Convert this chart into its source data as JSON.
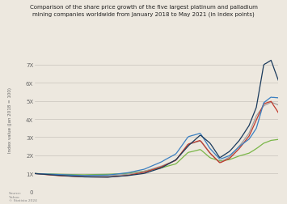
{
  "title": "Comparison of the share price growth of the five largest platinum and palladium\nmining companies worldwide from January 2018 to May 2021 (in index points)",
  "ylabel": "Index value (Jan 2018 = 100)",
  "source_text": "Source:\nYahoo\n© Statista 2024",
  "background_color": "#ede8df",
  "plot_bg_color": "#ede8df",
  "line_colors": [
    "#1a3a5c",
    "#3a7fc1",
    "#c0392b",
    "#a0a0a0",
    "#7ab648"
  ],
  "ytick_vals": [
    0,
    100,
    200,
    300,
    400,
    500,
    600,
    700
  ],
  "ytick_labels": [
    "0",
    "1X",
    "2X",
    "3X",
    "4X",
    "5X",
    "6X",
    "7X"
  ],
  "ylim": [
    0,
    800
  ],
  "profiles": {
    "navy": {
      "x": [
        0,
        0.1,
        0.2,
        0.3,
        0.38,
        0.45,
        0.52,
        0.58,
        0.63,
        0.68,
        0.72,
        0.76,
        0.8,
        0.84,
        0.88,
        0.91,
        0.94,
        0.97,
        1.0
      ],
      "y": [
        100,
        90,
        82,
        80,
        88,
        100,
        130,
        175,
        250,
        310,
        265,
        185,
        220,
        280,
        360,
        460,
        690,
        710,
        600
      ]
    },
    "blue": {
      "x": [
        0,
        0.1,
        0.2,
        0.3,
        0.38,
        0.45,
        0.52,
        0.58,
        0.63,
        0.68,
        0.72,
        0.76,
        0.8,
        0.84,
        0.88,
        0.91,
        0.94,
        0.97,
        1.0
      ],
      "y": [
        100,
        95,
        90,
        92,
        105,
        125,
        165,
        210,
        305,
        325,
        240,
        180,
        200,
        250,
        290,
        350,
        490,
        520,
        515
      ]
    },
    "red": {
      "x": [
        0,
        0.1,
        0.2,
        0.3,
        0.38,
        0.45,
        0.52,
        0.58,
        0.63,
        0.68,
        0.72,
        0.76,
        0.8,
        0.84,
        0.88,
        0.91,
        0.94,
        0.97,
        1.0
      ],
      "y": [
        100,
        88,
        83,
        82,
        90,
        108,
        138,
        175,
        265,
        285,
        215,
        160,
        185,
        240,
        310,
        400,
        490,
        505,
        440
      ]
    },
    "gray": {
      "x": [
        0,
        0.1,
        0.2,
        0.3,
        0.38,
        0.45,
        0.52,
        0.58,
        0.63,
        0.68,
        0.72,
        0.76,
        0.8,
        0.84,
        0.88,
        0.91,
        0.94,
        0.97,
        1.0
      ],
      "y": [
        100,
        92,
        88,
        87,
        95,
        112,
        140,
        172,
        258,
        278,
        210,
        160,
        190,
        250,
        320,
        415,
        470,
        490,
        475
      ]
    },
    "green": {
      "x": [
        0,
        0.1,
        0.2,
        0.3,
        0.38,
        0.45,
        0.52,
        0.58,
        0.63,
        0.68,
        0.72,
        0.76,
        0.8,
        0.84,
        0.88,
        0.91,
        0.94,
        0.97,
        1.0
      ],
      "y": [
        100,
        96,
        93,
        95,
        100,
        112,
        130,
        152,
        215,
        232,
        185,
        168,
        175,
        195,
        210,
        235,
        265,
        280,
        285
      ]
    }
  }
}
